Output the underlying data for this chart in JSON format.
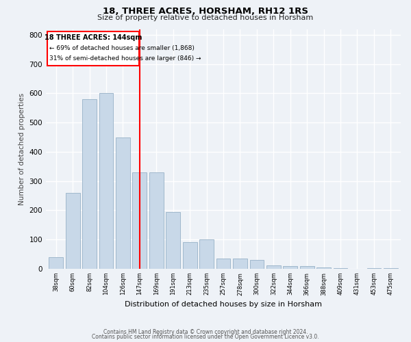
{
  "title": "18, THREE ACRES, HORSHAM, RH12 1RS",
  "subtitle": "Size of property relative to detached houses in Horsham",
  "xlabel": "Distribution of detached houses by size in Horsham",
  "ylabel": "Number of detached properties",
  "categories": [
    "38sqm",
    "60sqm",
    "82sqm",
    "104sqm",
    "126sqm",
    "147sqm",
    "169sqm",
    "191sqm",
    "213sqm",
    "235sqm",
    "257sqm",
    "278sqm",
    "300sqm",
    "322sqm",
    "344sqm",
    "366sqm",
    "388sqm",
    "409sqm",
    "431sqm",
    "453sqm",
    "475sqm"
  ],
  "values": [
    40,
    260,
    580,
    600,
    450,
    330,
    330,
    195,
    92,
    100,
    35,
    35,
    30,
    12,
    10,
    8,
    5,
    2,
    0,
    2,
    2
  ],
  "bar_color": "#c8d8e8",
  "bar_edgecolor": "#a0b8cc",
  "redline_index": 5,
  "redline_label": "18 THREE ACRES: 144sqm",
  "annotation_line1": "← 69% of detached houses are smaller (1,868)",
  "annotation_line2": "31% of semi-detached houses are larger (846) →",
  "ylim": [
    0,
    820
  ],
  "yticks": [
    0,
    100,
    200,
    300,
    400,
    500,
    600,
    700,
    800
  ],
  "background_color": "#eef2f7",
  "plot_background": "#eef2f7",
  "grid_color": "#ffffff",
  "footer_line1": "Contains HM Land Registry data © Crown copyright and database right 2024.",
  "footer_line2": "Contains public sector information licensed under the Open Government Licence v3.0."
}
